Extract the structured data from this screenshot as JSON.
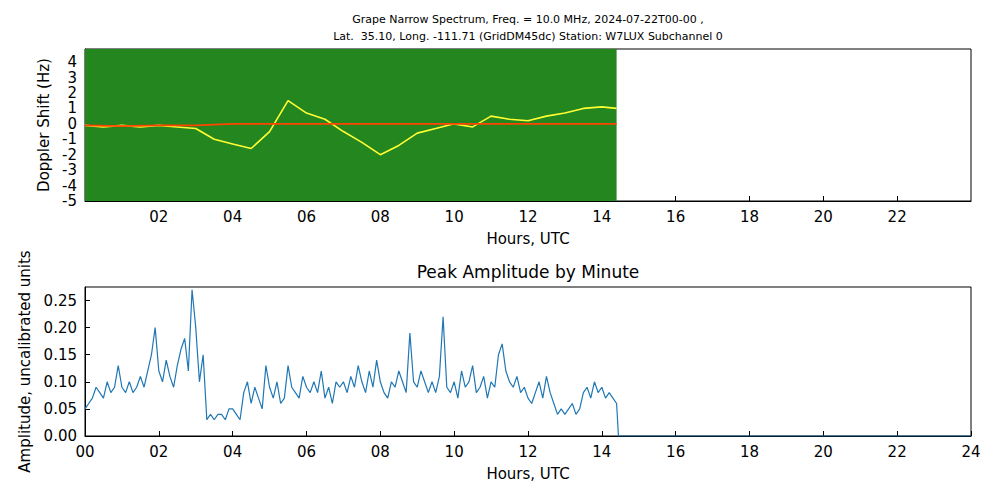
{
  "chart_data": [
    {
      "type": "line",
      "title": "Grape Narrow Spectrum, Freq. = 10.0 MHz, 2024-07-22T00-00 ,",
      "subtitle": "Lat.  35.10, Long. -111.71 (GridDM45dc) Station: W7LUX Subchannel 0",
      "x_label": "Hours, UTC",
      "y_label": "Doppler Shift (Hz)",
      "xlim": [
        0,
        24
      ],
      "ylim": [
        -5,
        4.85
      ],
      "xticks": [
        {
          "value": 2,
          "label": "02"
        },
        {
          "value": 4,
          "label": "04"
        },
        {
          "value": 6,
          "label": "06"
        },
        {
          "value": 8,
          "label": "08"
        },
        10,
        12,
        14,
        16,
        18,
        20,
        22
      ],
      "yticks": [
        -5,
        -4,
        -3,
        -2,
        -1,
        0,
        1,
        2,
        3,
        4
      ],
      "series": [
        {
          "color": "#ffff33",
          "x": [
            0,
            0.5,
            1,
            1.5,
            2,
            2.5,
            3,
            3.5,
            4,
            4.5,
            5,
            5.5,
            6,
            6.5,
            7,
            7.5,
            8,
            8.5,
            9,
            9.5,
            10,
            10.5,
            11,
            11.5,
            12,
            12.5,
            13,
            13.5,
            14,
            14.4
          ],
          "values": [
            -0.1,
            -0.2,
            -0.1,
            -0.2,
            -0.1,
            -0.2,
            -0.3,
            -1.0,
            -1.3,
            -1.6,
            -0.5,
            1.5,
            0.7,
            0.3,
            -0.5,
            -1.2,
            -2.0,
            -1.4,
            -0.6,
            -0.3,
            0.0,
            -0.2,
            0.5,
            0.3,
            0.2,
            0.5,
            0.7,
            1.0,
            1.1,
            1.0
          ]
        },
        {
          "color": "#ff4500",
          "x": [
            0,
            1,
            2,
            3,
            4,
            5,
            6,
            7,
            8,
            9,
            10,
            11,
            12,
            13,
            14,
            14.4
          ],
          "values": [
            -0.1,
            -0.15,
            -0.1,
            -0.1,
            0,
            0,
            0,
            0,
            0,
            0,
            0,
            0,
            0,
            0,
            0,
            0
          ]
        }
      ]
    },
    {
      "type": "line",
      "title": "Peak Amplitude by Minute",
      "x_label": "Hours, UTC",
      "y_label": "Amplitude, uncalibrated units",
      "xlim": [
        0,
        24
      ],
      "ylim": [
        0,
        0.275
      ],
      "xticks": [
        {
          "value": 0,
          "label": "00"
        },
        {
          "value": 2,
          "label": "02"
        },
        {
          "value": 4,
          "label": "04"
        },
        {
          "value": 6,
          "label": "06"
        },
        {
          "value": 8,
          "label": "08"
        },
        10,
        12,
        14,
        16,
        18,
        20,
        22,
        24
      ],
      "yticks": [
        {
          "value": 0,
          "label": "0.00"
        },
        0.05,
        {
          "value": 0.1,
          "label": "0.10"
        },
        0.15,
        {
          "value": 0.2,
          "label": "0.20"
        },
        0.25
      ],
      "color": "#1f77b4",
      "x": [
        0.0,
        0.1,
        0.2,
        0.3,
        0.4,
        0.5,
        0.6,
        0.7,
        0.8,
        0.9,
        1.0,
        1.1,
        1.2,
        1.3,
        1.4,
        1.5,
        1.6,
        1.7,
        1.8,
        1.9,
        2.0,
        2.1,
        2.2,
        2.3,
        2.4,
        2.5,
        2.6,
        2.7,
        2.8,
        2.9,
        3.0,
        3.1,
        3.2,
        3.3,
        3.4,
        3.5,
        3.6,
        3.7,
        3.8,
        3.9,
        4.0,
        4.1,
        4.2,
        4.3,
        4.4,
        4.5,
        4.6,
        4.7,
        4.8,
        4.9,
        5.0,
        5.1,
        5.2,
        5.3,
        5.4,
        5.5,
        5.6,
        5.7,
        5.8,
        5.9,
        6.0,
        6.1,
        6.2,
        6.3,
        6.4,
        6.5,
        6.6,
        6.7,
        6.8,
        6.9,
        7.0,
        7.1,
        7.2,
        7.3,
        7.4,
        7.5,
        7.6,
        7.7,
        7.8,
        7.9,
        8.0,
        8.1,
        8.2,
        8.3,
        8.4,
        8.5,
        8.6,
        8.7,
        8.8,
        8.9,
        9.0,
        9.1,
        9.2,
        9.3,
        9.4,
        9.5,
        9.6,
        9.7,
        9.8,
        9.9,
        10.0,
        10.1,
        10.2,
        10.3,
        10.4,
        10.5,
        10.6,
        10.7,
        10.8,
        10.9,
        11.0,
        11.1,
        11.2,
        11.3,
        11.4,
        11.5,
        11.6,
        11.7,
        11.8,
        11.9,
        12.0,
        12.1,
        12.2,
        12.3,
        12.4,
        12.5,
        12.6,
        12.7,
        12.8,
        12.9,
        13.0,
        13.1,
        13.2,
        13.3,
        13.4,
        13.5,
        13.6,
        13.7,
        13.8,
        13.9,
        14.0,
        14.1,
        14.2,
        14.3,
        14.4,
        14.45,
        24
      ],
      "values": [
        0.05,
        0.06,
        0.07,
        0.09,
        0.08,
        0.07,
        0.1,
        0.08,
        0.09,
        0.13,
        0.09,
        0.08,
        0.1,
        0.08,
        0.09,
        0.11,
        0.09,
        0.12,
        0.15,
        0.2,
        0.12,
        0.1,
        0.14,
        0.11,
        0.09,
        0.13,
        0.16,
        0.18,
        0.12,
        0.27,
        0.2,
        0.1,
        0.15,
        0.03,
        0.04,
        0.03,
        0.04,
        0.04,
        0.03,
        0.05,
        0.05,
        0.04,
        0.03,
        0.08,
        0.1,
        0.06,
        0.09,
        0.07,
        0.05,
        0.13,
        0.09,
        0.07,
        0.1,
        0.06,
        0.07,
        0.13,
        0.09,
        0.08,
        0.07,
        0.11,
        0.09,
        0.08,
        0.1,
        0.08,
        0.12,
        0.07,
        0.09,
        0.06,
        0.1,
        0.09,
        0.1,
        0.08,
        0.11,
        0.09,
        0.13,
        0.1,
        0.08,
        0.12,
        0.09,
        0.14,
        0.1,
        0.08,
        0.07,
        0.1,
        0.09,
        0.12,
        0.1,
        0.08,
        0.19,
        0.1,
        0.09,
        0.12,
        0.1,
        0.08,
        0.1,
        0.08,
        0.11,
        0.22,
        0.09,
        0.08,
        0.1,
        0.07,
        0.12,
        0.09,
        0.1,
        0.13,
        0.08,
        0.09,
        0.11,
        0.07,
        0.1,
        0.09,
        0.15,
        0.17,
        0.12,
        0.1,
        0.09,
        0.11,
        0.08,
        0.09,
        0.07,
        0.06,
        0.08,
        0.1,
        0.07,
        0.11,
        0.08,
        0.06,
        0.04,
        0.05,
        0.04,
        0.05,
        0.06,
        0.04,
        0.05,
        0.08,
        0.09,
        0.07,
        0.1,
        0.08,
        0.09,
        0.07,
        0.08,
        0.07,
        0.06,
        0,
        0
      ]
    }
  ]
}
